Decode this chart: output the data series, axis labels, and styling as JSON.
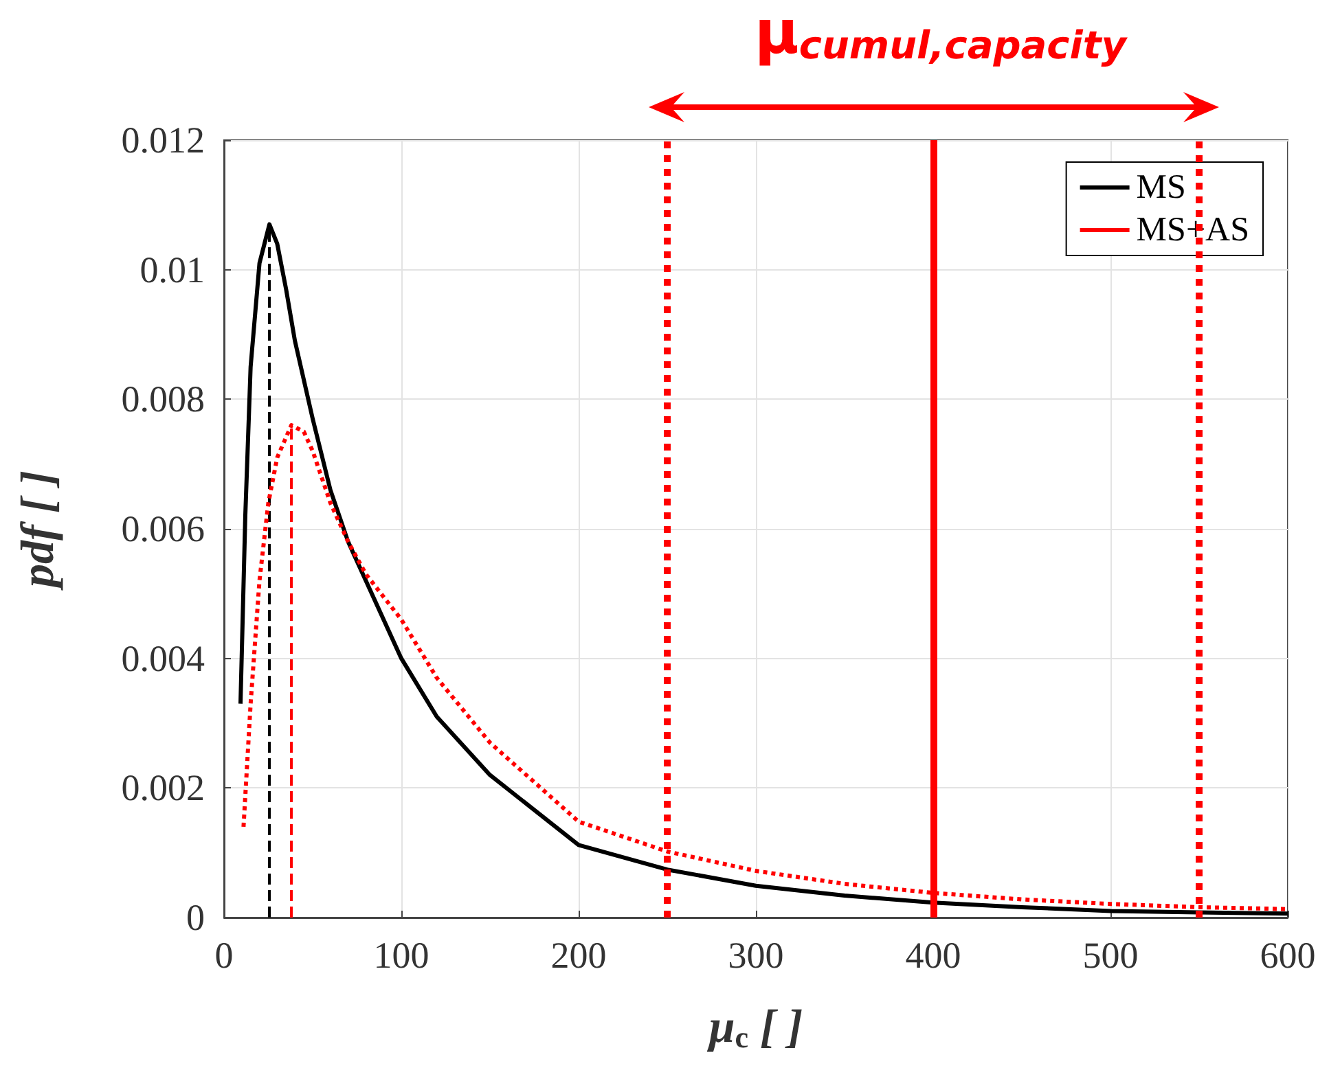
{
  "chart_data": {
    "type": "line",
    "xlabel": "μ$_{c}$ [ ]",
    "ylabel": "pdf [ ]",
    "annotations": [
      "μ$_{cumul,capacity}$"
    ],
    "series": [
      {
        "name": "MS",
        "color": "#000000",
        "line_style": "solid",
        "x": [
          9.3,
          12,
          15,
          20,
          25.6,
          30,
          35,
          40,
          50,
          60,
          70,
          80,
          100,
          120,
          150,
          200,
          250,
          300,
          350,
          400,
          450,
          500,
          550,
          600
        ],
        "values": [
          0.0033,
          0.0062,
          0.0085,
          0.0101,
          0.0107,
          0.0104,
          0.0097,
          0.0089,
          0.0077,
          0.0066,
          0.0058,
          0.0052,
          0.004,
          0.0031,
          0.0022,
          0.00112,
          0.00074,
          0.00049,
          0.00034,
          0.00023,
          0.00016,
          0.0001,
          8e-05,
          6e-05
        ]
      },
      {
        "name": "MS+AS",
        "color": "#ff0000",
        "line_style": "dotted",
        "x": [
          11,
          15,
          20,
          25,
          30,
          38,
          45,
          50,
          60,
          70,
          80,
          100,
          120,
          150,
          200,
          250,
          300,
          350,
          400,
          450,
          500,
          550,
          600
        ],
        "values": [
          0.0014,
          0.0033,
          0.0052,
          0.0064,
          0.0071,
          0.0076,
          0.0075,
          0.0072,
          0.0064,
          0.0058,
          0.0053,
          0.0046,
          0.0037,
          0.0027,
          0.00148,
          0.00102,
          0.00072,
          0.00052,
          0.00038,
          0.00028,
          0.00021,
          0.00016,
          0.00013
        ]
      },
      {
        "color": "#000000",
        "line_style": "dashed",
        "x": [
          25.6,
          25.6
        ],
        "values": [
          0,
          0.0107
        ]
      },
      {
        "color": "#ff0000",
        "line_style": "dashed",
        "x": [
          38,
          38
        ],
        "values": [
          0,
          0.0076
        ]
      }
    ],
    "ref_lines": [
      {
        "axis": "x",
        "value": 250,
        "color": "#ff0000",
        "line_style": "dotted"
      },
      {
        "axis": "x",
        "value": 400,
        "color": "#ff0000",
        "line_style": "solid"
      },
      {
        "axis": "x",
        "value": 550,
        "color": "#ff0000",
        "line_style": "dotted"
      }
    ],
    "xlim": [
      0,
      600
    ],
    "xticks": [
      0,
      100,
      200,
      300,
      400,
      500,
      600
    ],
    "ylim": [
      0,
      0.012
    ],
    "yticks": [
      0,
      0.002,
      0.004,
      0.006,
      0.008,
      0.01,
      0.012
    ],
    "grid": true,
    "legend": "top right",
    "marker": "none"
  }
}
